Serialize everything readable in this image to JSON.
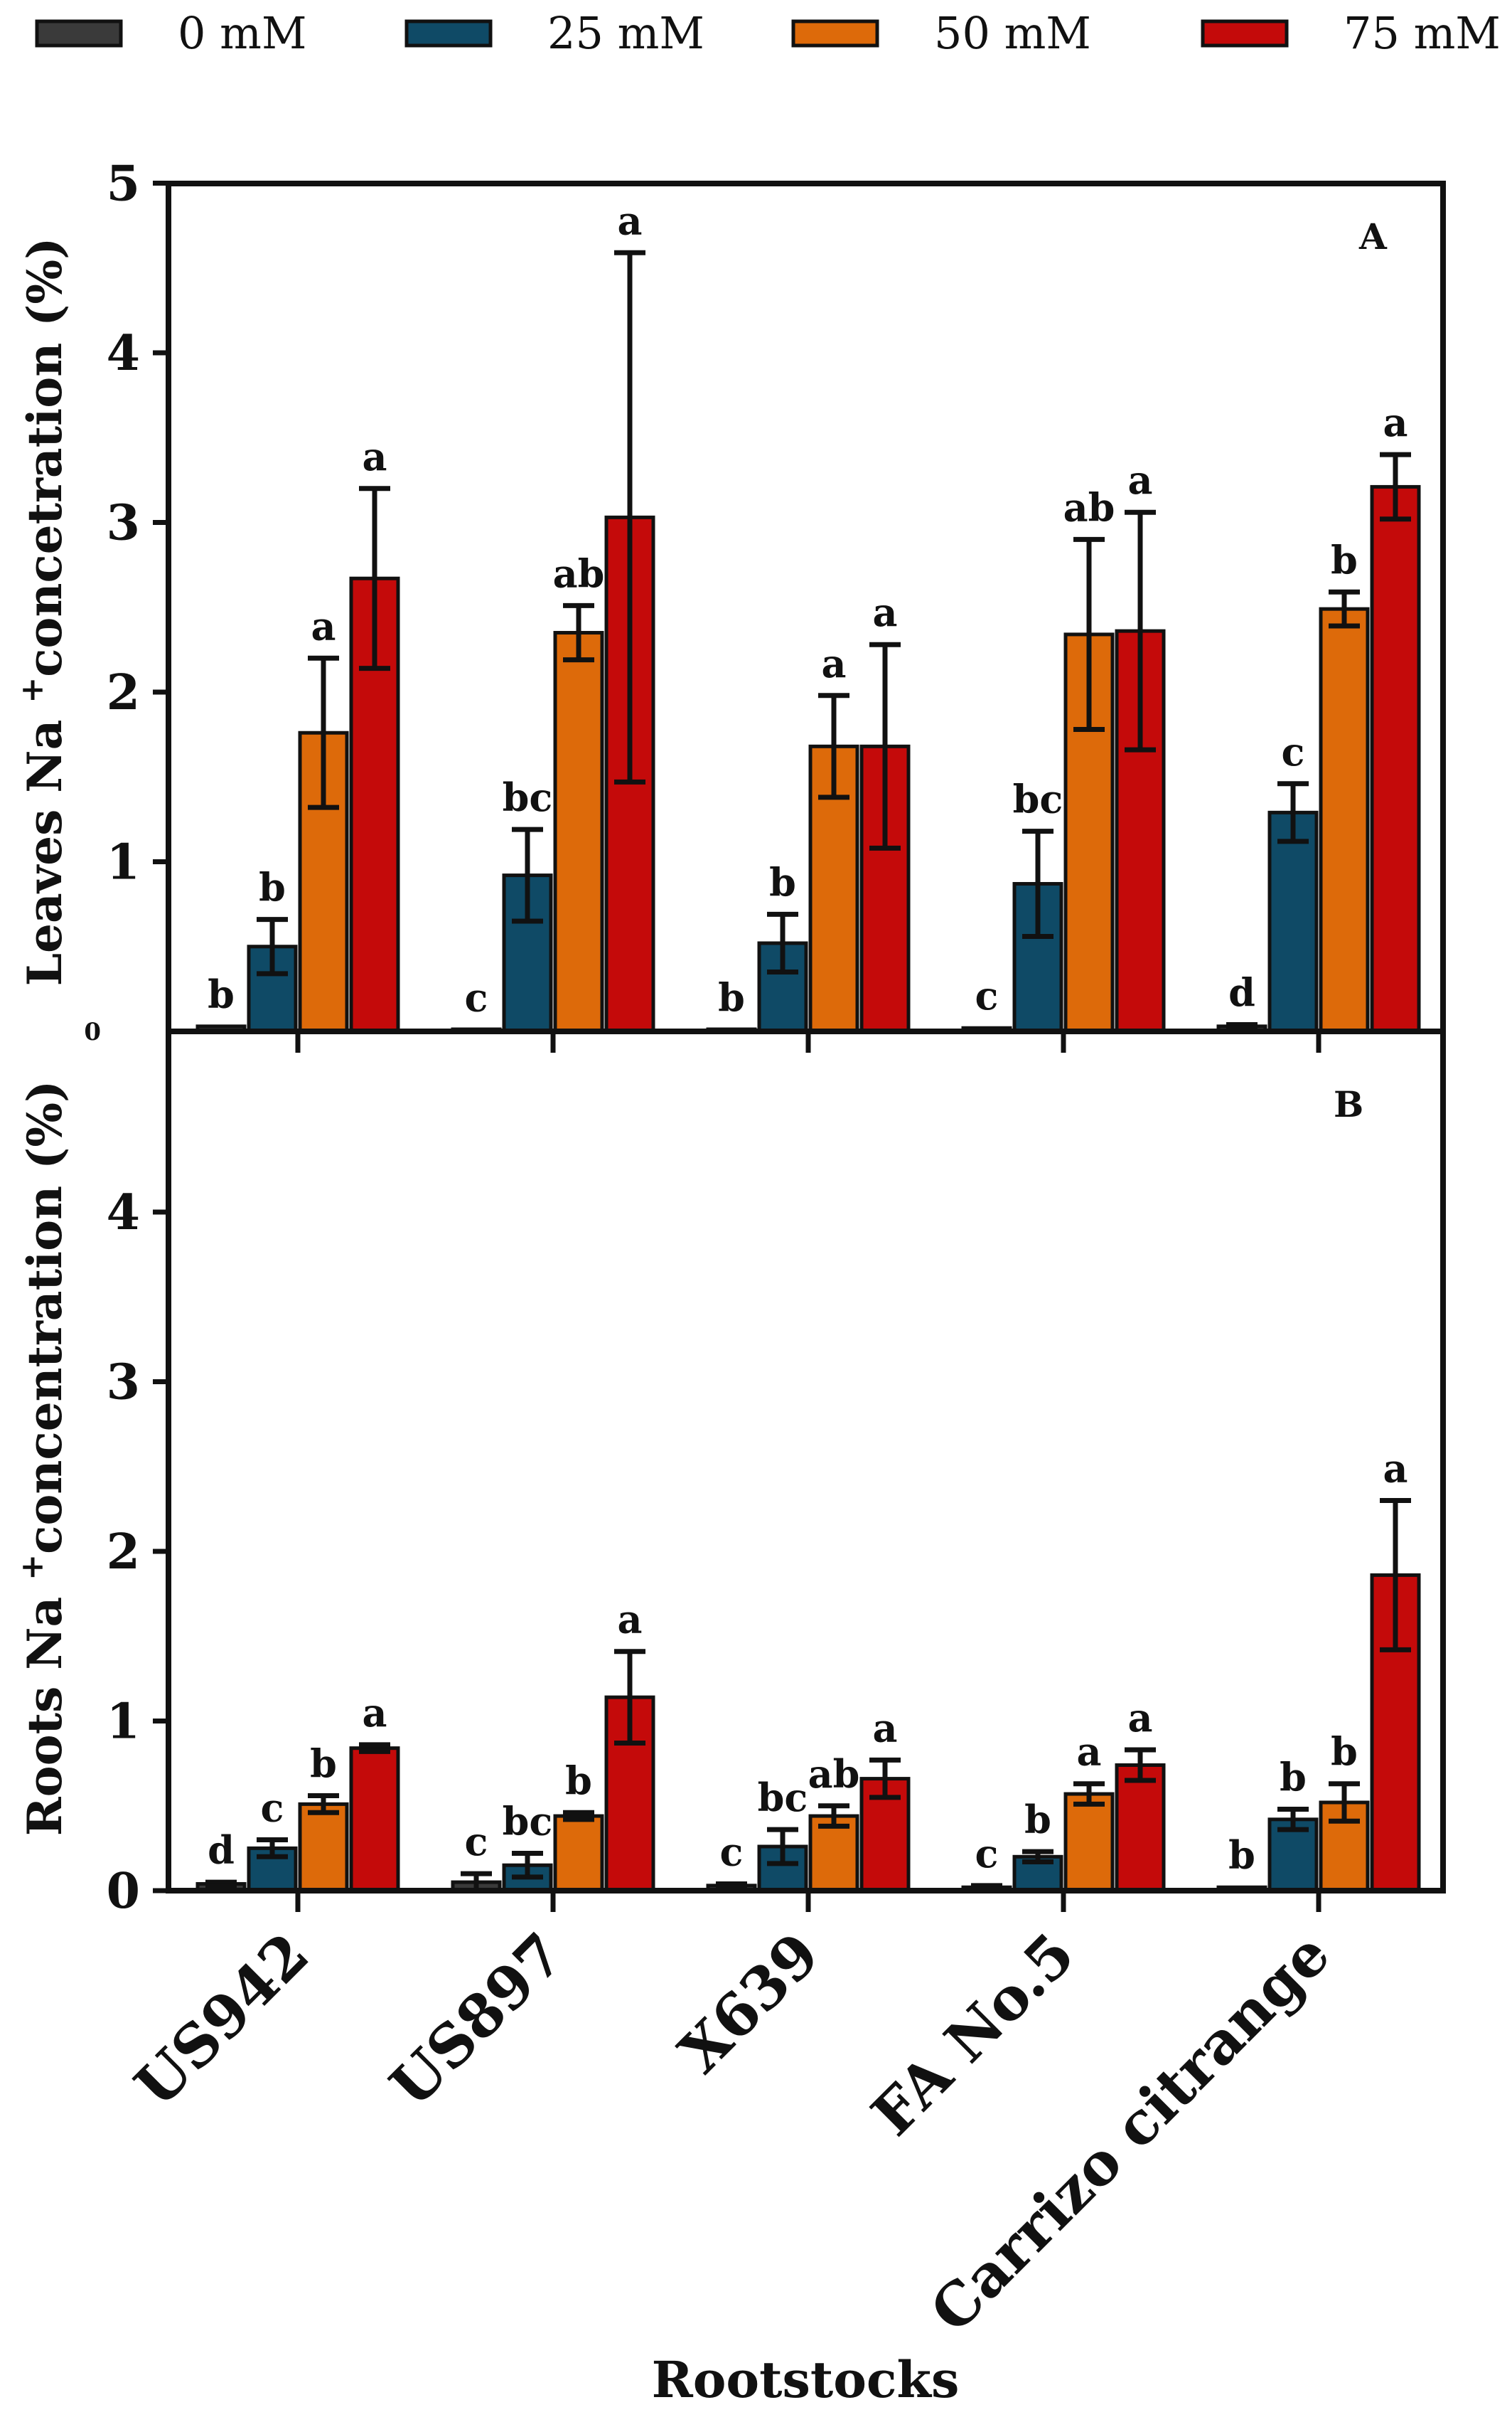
{
  "chart_data": {
    "type": "bar",
    "xlabel": "Rootstocks",
    "categories": [
      "US942",
      "US897",
      "X639",
      "FA No.5",
      "Carrizo citrange"
    ],
    "series_names": [
      "0 mM",
      "25 mM",
      "50 mM",
      "75 mM"
    ],
    "colors": [
      "#3a3a3a",
      "#0f4a66",
      "#dd6a0a",
      "#c40a0a"
    ],
    "legend_position": "top",
    "grid": false,
    "panels": [
      {
        "label": "A",
        "ylabel": "Leaves Na+ concetration (%)",
        "ylabel_main": "Leaves Na",
        "ylabel_sup": "+",
        "ylabel_rest": "concetration (%)",
        "ylim": [
          0,
          5
        ],
        "yticks": [
          "0",
          "1",
          "2",
          "3",
          "4",
          "5"
        ],
        "series": [
          {
            "name": "0 mM",
            "values": [
              0.03,
              0.01,
              0.01,
              0.02,
              0.03
            ],
            "errors": [
              0,
              0,
              0,
              0,
              0.01
            ],
            "letters": [
              "b",
              "c",
              "b",
              "c",
              "d"
            ]
          },
          {
            "name": "25 mM",
            "values": [
              0.5,
              0.92,
              0.52,
              0.87,
              1.29
            ],
            "errors": [
              0.16,
              0.27,
              0.17,
              0.31,
              0.17
            ],
            "letters": [
              "b",
              "bc",
              "b",
              "bc",
              "c"
            ]
          },
          {
            "name": "50 mM",
            "values": [
              1.76,
              2.35,
              1.68,
              2.34,
              2.49
            ],
            "errors": [
              0.44,
              0.16,
              0.3,
              0.56,
              0.1
            ],
            "letters": [
              "a",
              "ab",
              "a",
              "ab",
              "b"
            ]
          },
          {
            "name": "75 mM",
            "values": [
              2.67,
              3.03,
              1.68,
              2.36,
              3.21
            ],
            "errors": [
              0.53,
              1.56,
              0.6,
              0.7,
              0.19
            ],
            "letters": [
              "a",
              "a",
              "a",
              "a",
              "a"
            ]
          }
        ]
      },
      {
        "label": "B",
        "ylabel": "Roots Na+ concentration (%)",
        "ylabel_main": "Roots Na",
        "ylabel_sup": "+",
        "ylabel_rest": "concentration (%)",
        "ylim": [
          0,
          5
        ],
        "yticks": [
          "0",
          "1",
          "2",
          "3",
          "4"
        ],
        "series": [
          {
            "name": "0 mM",
            "values": [
              0.04,
              0.05,
              0.03,
              0.02,
              0.02
            ],
            "errors": [
              0.01,
              0.05,
              0.01,
              0.01,
              0
            ],
            "letters": [
              "d",
              "c",
              "c",
              "c",
              "b"
            ]
          },
          {
            "name": "25 mM",
            "values": [
              0.25,
              0.15,
              0.26,
              0.2,
              0.42
            ],
            "errors": [
              0.05,
              0.07,
              0.1,
              0.03,
              0.06
            ],
            "letters": [
              "c",
              "bc",
              "bc",
              "b",
              "b"
            ]
          },
          {
            "name": "50 mM",
            "values": [
              0.51,
              0.44,
              0.44,
              0.57,
              0.52
            ],
            "errors": [
              0.05,
              0.02,
              0.06,
              0.06,
              0.11
            ],
            "letters": [
              "b",
              "b",
              "ab",
              "a",
              "b"
            ]
          },
          {
            "name": "75 mM",
            "values": [
              0.84,
              1.14,
              0.66,
              0.74,
              1.86
            ],
            "errors": [
              0.02,
              0.27,
              0.11,
              0.09,
              0.44
            ],
            "letters": [
              "a",
              "a",
              "a",
              "a",
              "a"
            ]
          }
        ]
      }
    ]
  }
}
